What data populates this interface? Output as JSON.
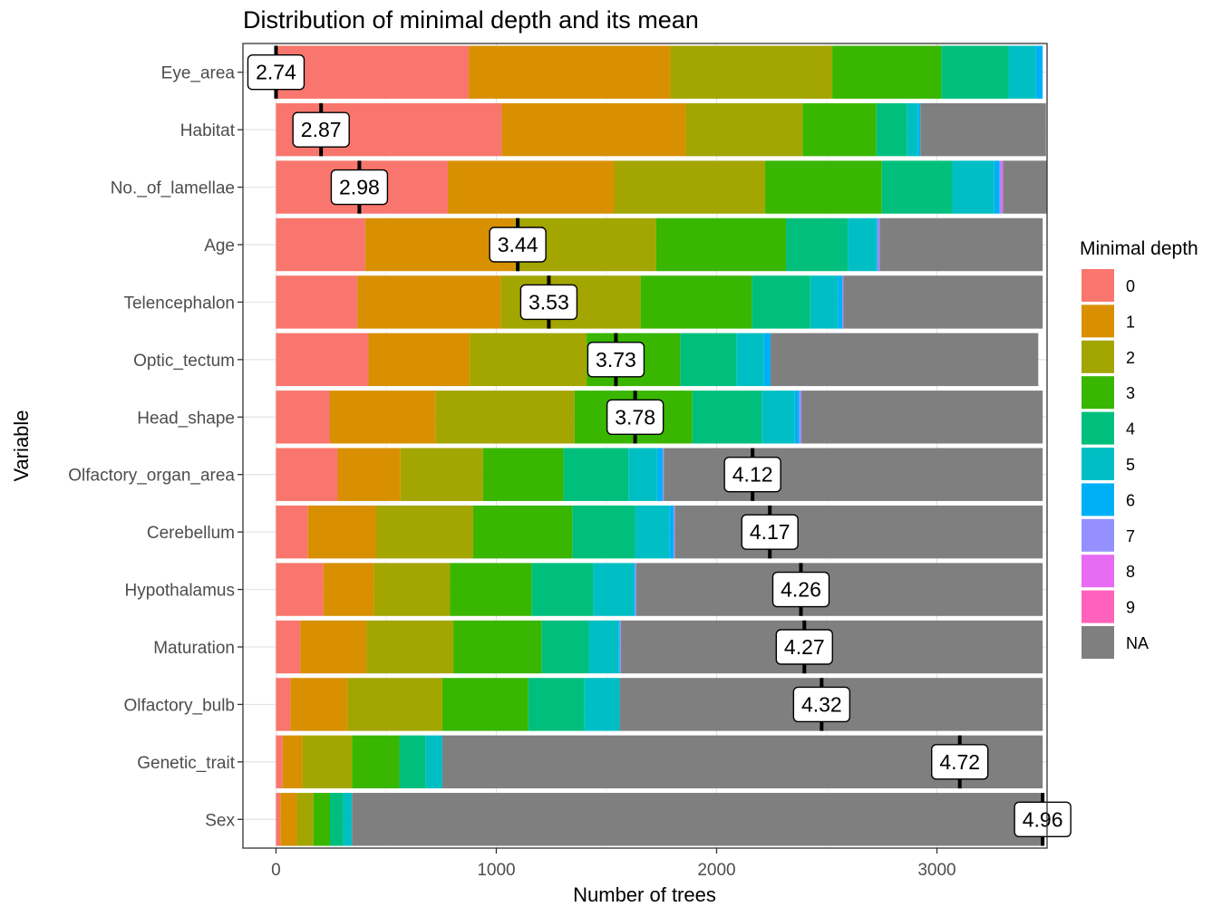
{
  "chart_data": {
    "type": "bar",
    "orientation": "horizontal",
    "stacked": true,
    "title": "Distribution of minimal depth and its mean",
    "xlabel": "Number of trees",
    "ylabel": "Variable",
    "xlim": [
      -150,
      3500
    ],
    "xticks": [
      0,
      1000,
      2000,
      3000
    ],
    "grid": true,
    "legend_position": "right",
    "legend_title": "Minimal depth",
    "depth_levels": [
      "0",
      "1",
      "2",
      "3",
      "4",
      "5",
      "6",
      "7",
      "8",
      "9",
      "NA"
    ],
    "colors": [
      "#F8766D",
      "#D89000",
      "#A3A500",
      "#39B600",
      "#00BF7D",
      "#00BFC4",
      "#00B0F6",
      "#9590FF",
      "#E76BF3",
      "#FF62BC",
      "#7F7F7F"
    ],
    "categories": [
      "Eye_area",
      "Habitat",
      "No._of_lamellae",
      "Age",
      "Telencephalon",
      "Optic_tectum",
      "Head_shape",
      "Olfactory_organ_area",
      "Cerebellum",
      "Hypothalamus",
      "Maturation",
      "Olfactory_bulb",
      "Genetic_trait",
      "Sex"
    ],
    "counts": [
      [
        875,
        915,
        735,
        495,
        305,
        125,
        30,
        0,
        0,
        0,
        0
      ],
      [
        1025,
        835,
        530,
        335,
        140,
        50,
        10,
        0,
        0,
        0,
        570
      ],
      [
        780,
        755,
        685,
        530,
        320,
        190,
        25,
        5,
        10,
        0,
        200
      ],
      [
        405,
        680,
        640,
        590,
        280,
        130,
        5,
        10,
        0,
        0,
        740
      ],
      [
        370,
        650,
        635,
        505,
        265,
        125,
        20,
        5,
        0,
        0,
        905
      ],
      [
        420,
        460,
        530,
        425,
        255,
        125,
        30,
        0,
        0,
        0,
        1215
      ],
      [
        245,
        480,
        630,
        535,
        315,
        150,
        20,
        10,
        0,
        0,
        1095
      ],
      [
        280,
        285,
        375,
        365,
        295,
        130,
        25,
        5,
        0,
        0,
        1720
      ],
      [
        145,
        310,
        440,
        450,
        285,
        155,
        20,
        5,
        0,
        0,
        1670
      ],
      [
        215,
        230,
        345,
        370,
        280,
        185,
        5,
        5,
        0,
        0,
        1845
      ],
      [
        110,
        300,
        395,
        400,
        215,
        135,
        5,
        5,
        0,
        0,
        1915
      ],
      [
        65,
        260,
        430,
        390,
        255,
        160,
        0,
        0,
        0,
        0,
        1920
      ],
      [
        30,
        90,
        225,
        215,
        120,
        75,
        0,
        0,
        0,
        0,
        2725
      ],
      [
        20,
        75,
        75,
        75,
        60,
        40,
        0,
        0,
        0,
        0,
        3135
      ]
    ],
    "mean_minimal_depth": [
      2.74,
      2.87,
      2.98,
      3.44,
      3.53,
      3.73,
      3.78,
      4.12,
      4.17,
      4.26,
      4.27,
      4.32,
      4.72,
      4.96
    ],
    "mean_labels": [
      "2.74",
      "2.87",
      "2.98",
      "3.44",
      "3.53",
      "3.73",
      "3.78",
      "4.12",
      "4.17",
      "4.26",
      "4.27",
      "4.32",
      "4.72",
      "4.96"
    ],
    "tick_labels": [
      "0",
      "1000",
      "2000",
      "3000"
    ]
  }
}
